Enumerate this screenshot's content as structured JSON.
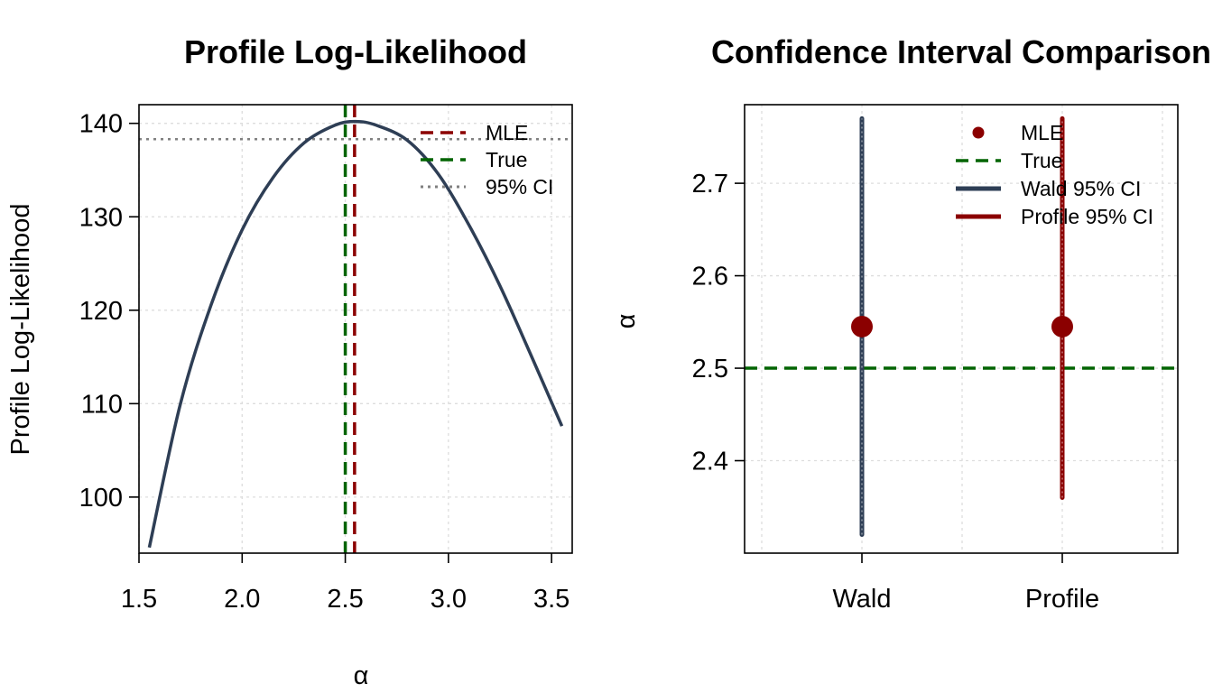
{
  "chart_data": [
    {
      "type": "line",
      "title": "Profile Log-Likelihood",
      "xlabel": "α",
      "ylabel": "Profile Log-Likelihood",
      "xlim": [
        1.5,
        3.6
      ],
      "ylim": [
        94,
        142
      ],
      "xticks": [
        "1.5",
        "2.0",
        "2.5",
        "3.0",
        "3.5"
      ],
      "yticks": [
        "100",
        "110",
        "120",
        "130",
        "140"
      ],
      "grid": true,
      "legend_position": "top-right",
      "series": [
        {
          "name": "",
          "x": [
            1.55,
            1.7,
            1.85,
            2.0,
            2.15,
            2.3,
            2.45,
            2.55,
            2.65,
            2.8,
            2.95,
            3.1,
            3.25,
            3.4,
            3.55
          ],
          "y": [
            94.6,
            109.9,
            120.6,
            128.6,
            134.2,
            137.9,
            139.8,
            140.2,
            139.8,
            138.2,
            134.6,
            129.1,
            122.6,
            115.2,
            107.6
          ]
        }
      ],
      "reference_lines": [
        {
          "name": "MLE",
          "orientation": "vertical",
          "value": 2.545,
          "color": "#8b0000",
          "style": "dashed"
        },
        {
          "name": "True",
          "orientation": "vertical",
          "value": 2.5,
          "color": "#006400",
          "style": "dashed"
        },
        {
          "name": "95% CI",
          "orientation": "horizontal",
          "value": 138.3,
          "color": "#808080",
          "style": "dotted"
        }
      ],
      "legend": [
        {
          "label": "MLE",
          "color": "#8b0000",
          "style": "dashed"
        },
        {
          "label": "True",
          "color": "#006400",
          "style": "dashed"
        },
        {
          "label": "95% CI",
          "color": "#808080",
          "style": "dotted"
        }
      ]
    },
    {
      "type": "scatter",
      "title": "Confidence Interval Comparison",
      "xlabel": "",
      "ylabel": "α",
      "categories": [
        "Wald",
        "Profile"
      ],
      "ylim": [
        2.3,
        2.785
      ],
      "yticks": [
        "2.4",
        "2.5",
        "2.6",
        "2.7"
      ],
      "grid": true,
      "legend_position": "top-right",
      "intervals": [
        {
          "category": "Wald",
          "estimate": 2.545,
          "lower": 2.32,
          "upper": 2.77,
          "color": "#2e3e55"
        },
        {
          "category": "Profile",
          "estimate": 2.545,
          "lower": 2.36,
          "upper": 2.77,
          "color": "#8b0000"
        }
      ],
      "reference_lines": [
        {
          "name": "True",
          "orientation": "horizontal",
          "value": 2.5,
          "color": "#006400",
          "style": "dashed"
        }
      ],
      "legend": [
        {
          "label": "MLE",
          "color": "#8b0000",
          "style": "point"
        },
        {
          "label": "True",
          "color": "#006400",
          "style": "dashed"
        },
        {
          "label": "Wald 95% CI",
          "color": "#2e3e55",
          "style": "solid"
        },
        {
          "label": "Profile 95% CI",
          "color": "#8b0000",
          "style": "solid"
        }
      ]
    }
  ]
}
